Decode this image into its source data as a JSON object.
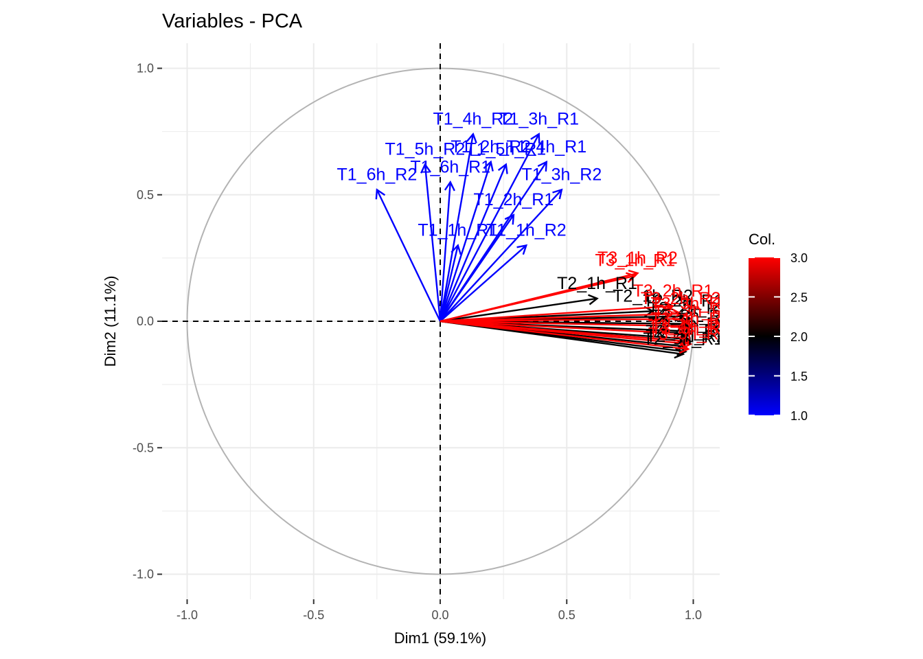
{
  "chart_data": {
    "type": "scatter",
    "title": "Variables - PCA",
    "xlabel": "Dim1 (59.1%)",
    "ylabel": "Dim2 (11.1%)",
    "xlim": [
      -1.0,
      1.05
    ],
    "ylim": [
      -1.1,
      1.1
    ],
    "xticks": [
      -1.0,
      -0.5,
      0.0,
      0.5,
      1.0
    ],
    "xtick_labels": [
      "-1.0",
      "-0.5",
      "0.0",
      "0.5",
      "1.0"
    ],
    "yticks": [
      -1.0,
      -0.5,
      0.0,
      0.5,
      1.0
    ],
    "ytick_labels": [
      "-1.0",
      "-0.5",
      "0.0",
      "0.5",
      "1.0"
    ],
    "grid": true,
    "correlation_circle": true,
    "reference_lines": {
      "x": 0,
      "y": 0,
      "style": "dashed"
    },
    "legend": {
      "title": "Col.",
      "position": "right",
      "type": "colorbar",
      "range": [
        1.0,
        3.0
      ],
      "ticks": [
        1.0,
        1.5,
        2.0,
        2.5,
        3.0
      ],
      "tick_labels": [
        "1.0",
        "1.5",
        "2.0",
        "2.5",
        "3.0"
      ],
      "gradient": [
        "#0000FF",
        "#000000",
        "#FF0000"
      ]
    },
    "colors": {
      "1": "#0000FF",
      "2": "#000000",
      "3": "#FF0000",
      "circle": "#b3b3b3",
      "grid": "#ebebeb"
    },
    "series": [
      {
        "name": "1",
        "color": "#0000FF",
        "points": [
          {
            "label": "T1_6h_R2",
            "x": -0.25,
            "y": 0.52
          },
          {
            "label": "T1_5h_R2",
            "x": -0.06,
            "y": 0.62
          },
          {
            "label": "T1_6h_R1",
            "x": 0.04,
            "y": 0.55
          },
          {
            "label": "T1_4h_R2",
            "x": 0.13,
            "y": 0.74
          },
          {
            "label": "T1_5h_R1",
            "x": 0.26,
            "y": 0.62
          },
          {
            "label": "T1_2h_R2",
            "x": 0.2,
            "y": 0.63
          },
          {
            "label": "T1_3h_R1",
            "x": 0.39,
            "y": 0.74
          },
          {
            "label": "T1_4h_R1",
            "x": 0.42,
            "y": 0.63
          },
          {
            "label": "T1_3h_R2",
            "x": 0.48,
            "y": 0.52
          },
          {
            "label": "T1_2h_R1",
            "x": 0.29,
            "y": 0.42
          },
          {
            "label": "T1_1h_R1",
            "x": 0.07,
            "y": 0.3
          },
          {
            "label": "T1_1h_R2",
            "x": 0.34,
            "y": 0.3
          }
        ]
      },
      {
        "name": "2",
        "color": "#000000",
        "points": [
          {
            "label": "T2_1h_R1",
            "x": 0.62,
            "y": 0.09
          },
          {
            "label": "T2_1h_R2",
            "x": 0.84,
            "y": 0.04
          },
          {
            "label": "T2_2h_R1",
            "x": 0.96,
            "y": 0.02
          },
          {
            "label": "T2_2h_R2",
            "x": 0.98,
            "y": -0.01
          },
          {
            "label": "T2_3h_R1",
            "x": 0.99,
            "y": -0.04
          },
          {
            "label": "T2_3h_R2",
            "x": 0.98,
            "y": -0.07
          },
          {
            "label": "T2_4h_R1",
            "x": 0.97,
            "y": -0.1
          },
          {
            "label": "T2_4h_R2",
            "x": 0.97,
            "y": -0.12
          },
          {
            "label": "T2_5h_R1",
            "x": 0.96,
            "y": -0.13
          },
          {
            "label": "T2_6h_R1",
            "x": 0.99,
            "y": -0.08
          }
        ]
      },
      {
        "name": "3",
        "color": "#FF0000",
        "points": [
          {
            "label": "T3_1h_R2",
            "x": 0.78,
            "y": 0.19
          },
          {
            "label": "T3_1h_R1",
            "x": 0.77,
            "y": 0.18
          },
          {
            "label": "T3_2h_R1",
            "x": 0.92,
            "y": 0.06
          },
          {
            "label": "T3_2h_R2",
            "x": 0.95,
            "y": 0.03
          },
          {
            "label": "T3_3h_R1",
            "x": 0.99,
            "y": 0.01
          },
          {
            "label": "T3_3h_R2",
            "x": 1.0,
            "y": -0.02
          },
          {
            "label": "T3_4h_R1",
            "x": 0.99,
            "y": -0.05
          },
          {
            "label": "T3_4h_R2",
            "x": 0.98,
            "y": -0.08
          },
          {
            "label": "T3_5h_R1",
            "x": 0.98,
            "y": -0.11
          },
          {
            "label": "T3_6h_R1",
            "x": 0.99,
            "y": -0.09
          }
        ]
      }
    ]
  }
}
